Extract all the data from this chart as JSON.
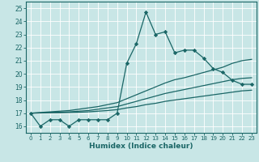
{
  "xlabel": "Humidex (Indice chaleur)",
  "ylabel": "",
  "xlim": [
    -0.5,
    23.5
  ],
  "ylim": [
    15.5,
    25.5
  ],
  "yticks": [
    16,
    17,
    18,
    19,
    20,
    21,
    22,
    23,
    24,
    25
  ],
  "xticks": [
    0,
    1,
    2,
    3,
    4,
    5,
    6,
    7,
    8,
    9,
    10,
    11,
    12,
    13,
    14,
    15,
    16,
    17,
    18,
    19,
    20,
    21,
    22,
    23
  ],
  "bg_color": "#c8e6e6",
  "line_color": "#1a6666",
  "grid_color": "#ffffff",
  "main_line": [
    17.0,
    16.0,
    16.5,
    16.5,
    16.0,
    16.5,
    16.5,
    16.5,
    16.5,
    17.0,
    20.8,
    22.3,
    24.7,
    23.0,
    23.2,
    21.6,
    21.8,
    21.8,
    21.2,
    20.4,
    20.1,
    19.5,
    19.2,
    19.2
  ],
  "trend_lines": [
    [
      17.0,
      17.05,
      17.1,
      17.15,
      17.2,
      17.3,
      17.4,
      17.5,
      17.65,
      17.8,
      18.1,
      18.4,
      18.7,
      19.0,
      19.3,
      19.55,
      19.7,
      19.9,
      20.1,
      20.3,
      20.5,
      20.8,
      21.0,
      21.1
    ],
    [
      17.0,
      17.02,
      17.05,
      17.07,
      17.1,
      17.15,
      17.2,
      17.3,
      17.4,
      17.5,
      17.7,
      17.9,
      18.1,
      18.3,
      18.5,
      18.65,
      18.8,
      18.95,
      19.1,
      19.25,
      19.4,
      19.55,
      19.65,
      19.7
    ],
    [
      17.0,
      17.01,
      17.02,
      17.03,
      17.05,
      17.07,
      17.1,
      17.15,
      17.2,
      17.27,
      17.4,
      17.5,
      17.65,
      17.75,
      17.9,
      18.0,
      18.1,
      18.2,
      18.3,
      18.4,
      18.5,
      18.6,
      18.7,
      18.75
    ]
  ]
}
